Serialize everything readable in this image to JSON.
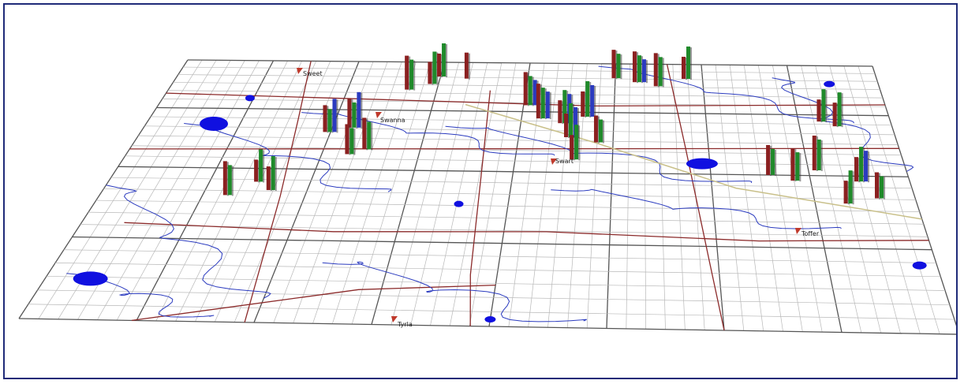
{
  "view": {
    "type": "3d perspective map",
    "colors": {
      "frame_border": "#1f2a78",
      "grid": "#b8b8b8",
      "major_grid": "#555555",
      "roads": "#8b2a2a",
      "rivers": "#2b3bbf",
      "lakes": "#1010e0",
      "highway": "#c9c08a",
      "bar_red": "#8b2020",
      "bar_green": "#1f8a2a",
      "bar_blue": "#2b3bbf",
      "town_marker": "#c0392b"
    }
  },
  "towns": [
    {
      "name": "Sweet"
    },
    {
      "name": "Swanna"
    },
    {
      "name": "Swart"
    },
    {
      "name": "Toffer"
    },
    {
      "name": "Tyrla"
    }
  ],
  "icons": {
    "town_marker": "pin-icon",
    "bar_cluster": "bar-cluster-icon"
  }
}
